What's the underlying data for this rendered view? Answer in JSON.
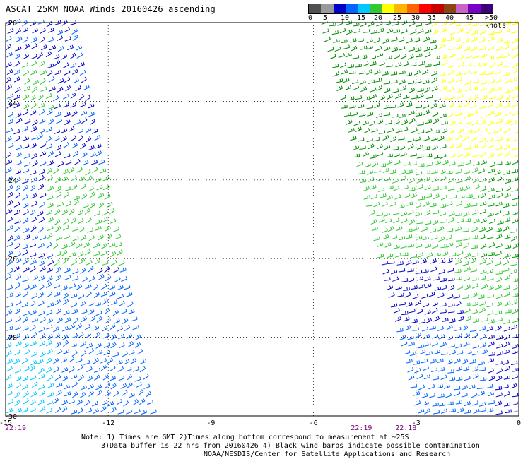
{
  "title": "ASCAT 25KM NOAA Winds 20160426 ascending",
  "colorbar": {
    "colors": [
      "#505050",
      "#9a9a9a",
      "#0000c8",
      "#0064ff",
      "#00c8ff",
      "#32c832",
      "#ffff00",
      "#ffb400",
      "#ff6400",
      "#ff0000",
      "#c80000",
      "#8b4513",
      "#c864c8",
      "#7800c8",
      "#3c0078"
    ],
    "labels": [
      "0",
      "5",
      "10",
      "15",
      "20",
      "25",
      "30",
      "35",
      "40",
      "45",
      ">50 knots"
    ],
    "label_x": [
      436,
      457,
      482,
      505,
      529,
      556,
      582,
      605,
      630,
      658,
      686
    ]
  },
  "map": {
    "lon_range": [
      -15,
      0
    ],
    "lat_range": [
      -30,
      -20
    ],
    "x_ticks": [
      "-15",
      "-12",
      "-9",
      "-6",
      "-3",
      "0"
    ],
    "x_tick_values": [
      -15,
      -12,
      -9,
      -6,
      -3,
      0
    ],
    "y_ticks": [
      "-20",
      "-22",
      "-24",
      "-26",
      "-28",
      "-30"
    ],
    "y_tick_values": [
      -20,
      -22,
      -24,
      -26,
      -28,
      -30
    ],
    "times": [
      {
        "label": "22:19",
        "lon": -15
      },
      {
        "label": "22:19",
        "lon": -4.6
      },
      {
        "label": "22:18",
        "lon": -3.3
      }
    ],
    "swaths": [
      {
        "name": "west",
        "lon_left_top": -15,
        "lon_right_top": -12.9,
        "lon_left_bottom": -15,
        "lon_right_bottom": -10.6
      },
      {
        "name": "east",
        "lon_left_top": -5.8,
        "lon_right_top": 0,
        "lon_left_bottom": -3.0,
        "lon_right_bottom": 0
      }
    ]
  },
  "notes": [
    "Note: 1) Times are GMT 2)Times along bottom correspond to measurement at ~25S",
    "3)Data buffer is 22 hrs from 20160426 4) Black wind barbs indicate possible contamination",
    "NOAA/NESDIS/Center for Satellite Applications and Research"
  ]
}
